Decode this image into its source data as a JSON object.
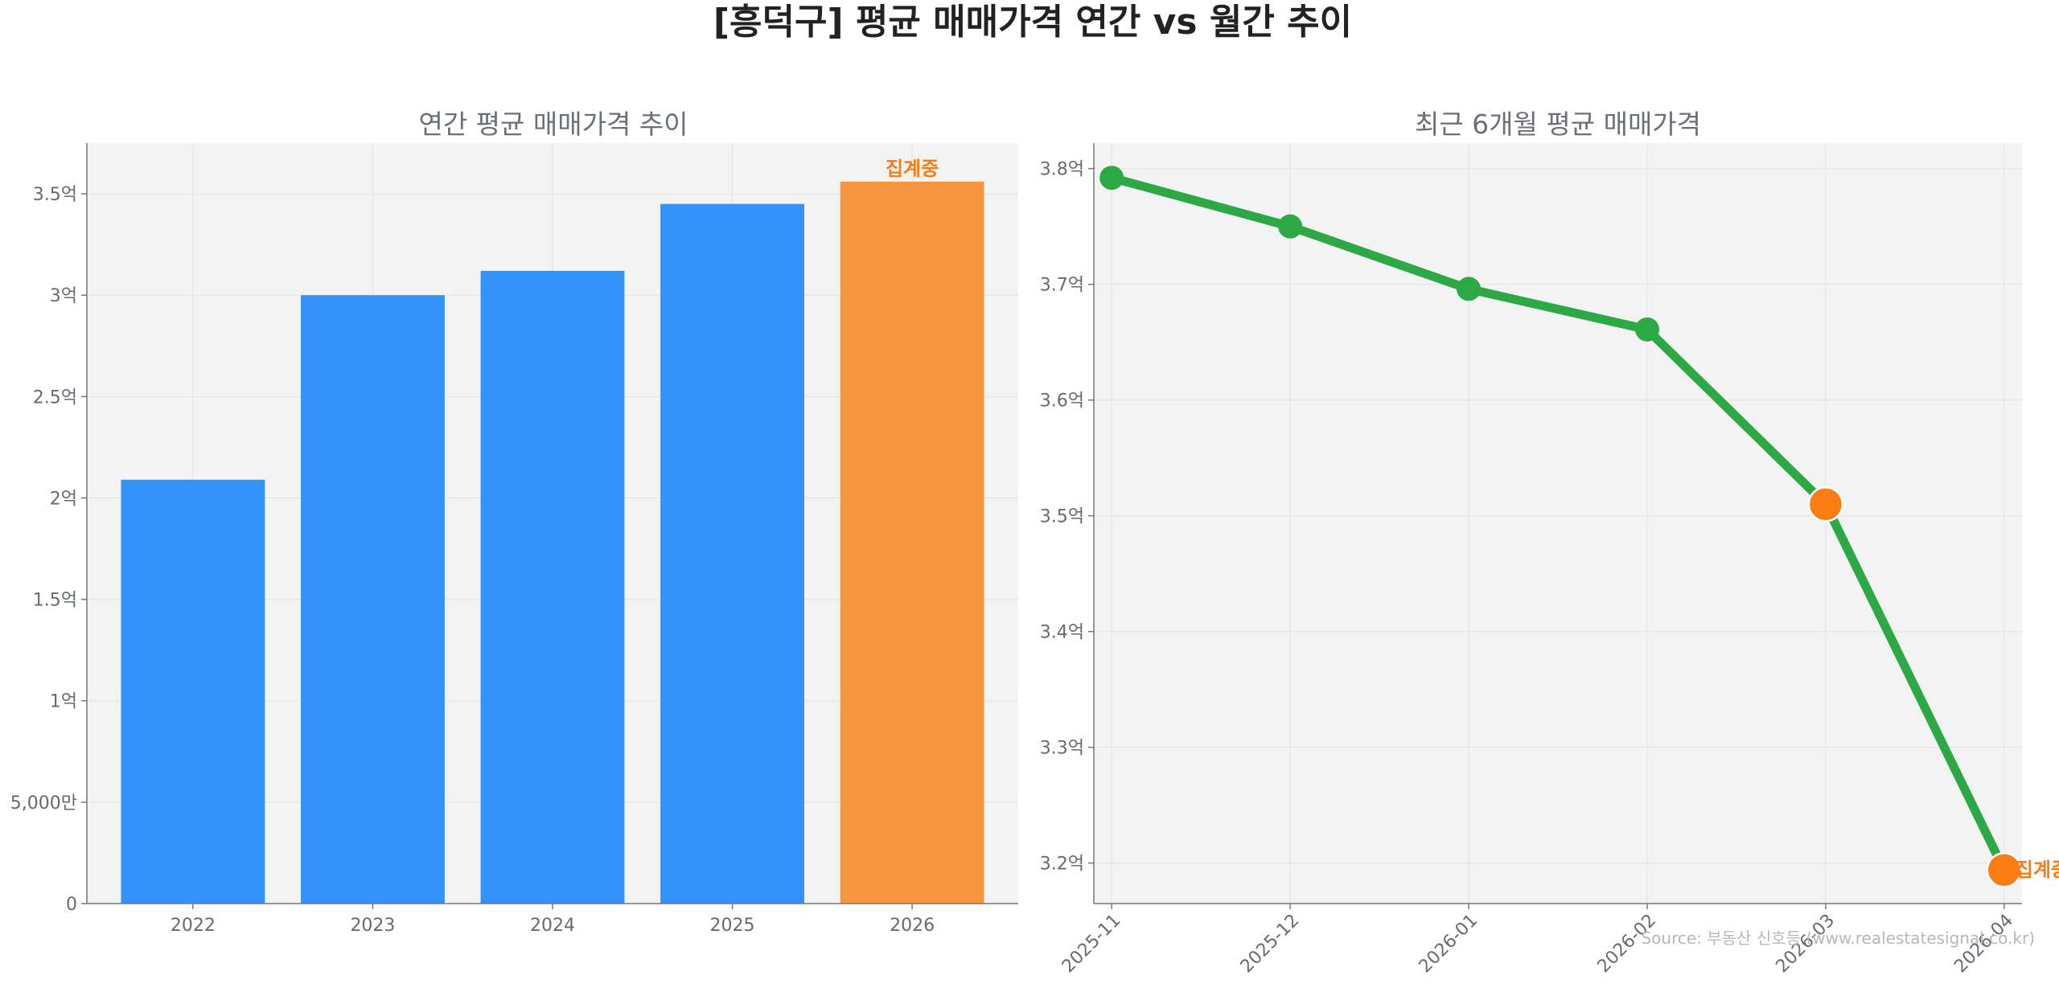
{
  "title": "[흥덕구] 평균 매매가격 연간 vs 월간 추이",
  "source": "Source: 부동산 신호등 (www.realestatesignal.co.kr)",
  "colors": {
    "bar_final": "#3292fa",
    "bar_partial": "#f7963f",
    "line": "#2ca844",
    "marker_final": "#2ca844",
    "marker_partial": "#f97d12",
    "status_text": "#f47c16",
    "plot_bg": "#f3f3f3",
    "grid": "#e3e3e3"
  },
  "chart_data": [
    {
      "type": "bar",
      "title": "연간 평균 매매가격 추이",
      "xlabel": "",
      "ylabel": "",
      "categories": [
        "2022",
        "2023",
        "2024",
        "2025",
        "2026"
      ],
      "values": [
        20900,
        30000,
        31200,
        34500,
        35600
      ],
      "value_unit": "만원",
      "ylim": [
        0,
        37500
      ],
      "yticks": [
        {
          "value": 0,
          "label": "0"
        },
        {
          "value": 5000,
          "label": "5,000만"
        },
        {
          "value": 10000,
          "label": "1억"
        },
        {
          "value": 15000,
          "label": "1.5억"
        },
        {
          "value": 20000,
          "label": "2억"
        },
        {
          "value": 25000,
          "label": "2.5억"
        },
        {
          "value": 30000,
          "label": "3억"
        },
        {
          "value": 35000,
          "label": "3.5억"
        }
      ],
      "partial": [
        false,
        false,
        false,
        false,
        true
      ],
      "annotations": [
        {
          "category": "2026",
          "text": "집계중"
        }
      ],
      "grid": true
    },
    {
      "type": "line",
      "title": "최근 6개월 평균 매매가격",
      "xlabel": "",
      "ylabel": "",
      "x": [
        "2025-11",
        "2025-12",
        "2026-01",
        "2026-02",
        "2026-03",
        "2026-04"
      ],
      "values": [
        37920,
        37500,
        36960,
        36610,
        35100,
        31940
      ],
      "value_unit": "만원",
      "ylim": [
        31650,
        38220
      ],
      "yticks": [
        {
          "value": 32000,
          "label": "3.2억"
        },
        {
          "value": 33000,
          "label": "3.3억"
        },
        {
          "value": 34000,
          "label": "3.4억"
        },
        {
          "value": 35000,
          "label": "3.5억"
        },
        {
          "value": 36000,
          "label": "3.6억"
        },
        {
          "value": 37000,
          "label": "3.7억"
        },
        {
          "value": 38000,
          "label": "3.8억"
        }
      ],
      "partial": [
        false,
        false,
        false,
        false,
        true,
        true
      ],
      "annotations": [
        {
          "x": "2026-04",
          "text": "집계중"
        }
      ],
      "x_tick_rotation": 45,
      "grid": true
    }
  ]
}
